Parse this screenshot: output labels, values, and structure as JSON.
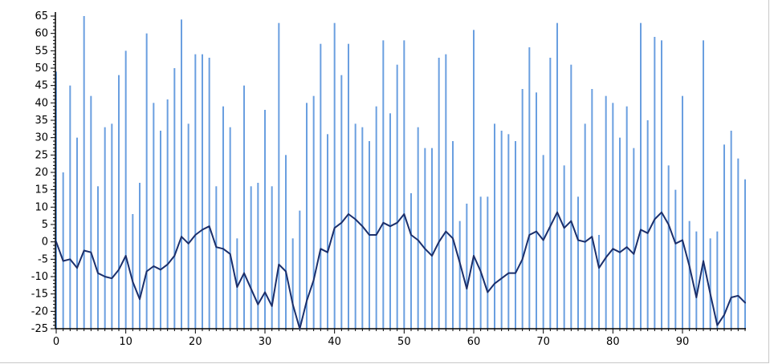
{
  "chart_data": {
    "type": "bar+line",
    "title": "",
    "xlabel": "",
    "ylabel": "",
    "xlim": [
      0,
      99
    ],
    "ylim": [
      -25,
      65
    ],
    "x_ticks": [
      0,
      10,
      20,
      30,
      40,
      50,
      60,
      70,
      80,
      90
    ],
    "y_ticks": [
      -25,
      -20,
      -15,
      -10,
      -5,
      0,
      5,
      10,
      15,
      20,
      25,
      30,
      35,
      40,
      45,
      50,
      55,
      60,
      65
    ],
    "grid": false,
    "legend": "none",
    "colors": {
      "bars": "#6a9fe0",
      "line": "#1b2f6b",
      "axis": "#000000"
    },
    "series": [
      {
        "type": "bar",
        "values": [
          49,
          20,
          45,
          30,
          65,
          42,
          16,
          33,
          34,
          48,
          55,
          8,
          17,
          60,
          40,
          32,
          41,
          50,
          64,
          34,
          54,
          54,
          53,
          16,
          39,
          33,
          1,
          45,
          16,
          17,
          38,
          16,
          63,
          25,
          1,
          9,
          40,
          42,
          57,
          31,
          63,
          48,
          57,
          34,
          33,
          29,
          39,
          58,
          37,
          51,
          58,
          14,
          33,
          27,
          27,
          53,
          54,
          29,
          6,
          11,
          61,
          13,
          13,
          34,
          32,
          31,
          29,
          44,
          56,
          43,
          25,
          53,
          63,
          22,
          51,
          13,
          34,
          44,
          2,
          42,
          40,
          30,
          39,
          27,
          63,
          35,
          59,
          58,
          22,
          15,
          42,
          6,
          3,
          58,
          1,
          3,
          28,
          32,
          24,
          18
        ]
      },
      {
        "type": "line",
        "values": [
          0,
          -5.5,
          -5,
          -7.5,
          -2.5,
          -3,
          -9,
          -10,
          -10.5,
          -8,
          -4,
          -11.5,
          -16.5,
          -8.5,
          -7,
          -8,
          -6.5,
          -4,
          1.5,
          -0.5,
          2,
          3.5,
          4.5,
          -1.5,
          -2,
          -3.5,
          -13,
          -9,
          -13.5,
          -18,
          -14.5,
          -18.5,
          -6.5,
          -8.5,
          -18,
          -25,
          -17,
          -11,
          -2,
          -3,
          4,
          5.5,
          8,
          6.5,
          4.5,
          2,
          2,
          5.5,
          4.5,
          5.5,
          8,
          2,
          0.5,
          -2,
          -4,
          0,
          3,
          1,
          -6,
          -13.5,
          -4,
          -8.5,
          -14.5,
          -12,
          -10.5,
          -9,
          -9,
          -5,
          2,
          3,
          0.5,
          4.5,
          8.5,
          4,
          6,
          0.5,
          0,
          1.5,
          -7.5,
          -4.5,
          -2,
          -3,
          -1.5,
          -3.5,
          3.5,
          2.5,
          6.5,
          8.5,
          5,
          -0.5,
          0.5,
          -7,
          -16,
          -5.5,
          -15,
          -24,
          -21,
          -16,
          -15.5,
          -17.5
        ]
      }
    ]
  }
}
